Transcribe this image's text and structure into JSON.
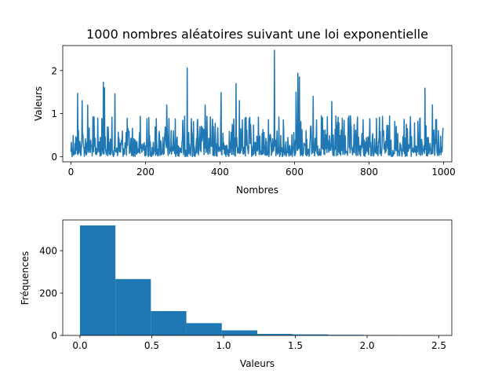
{
  "chart_data": [
    {
      "type": "line",
      "title": "1000 nombres aléatoires suivant une loi exponentielle",
      "xlabel": "Nombres",
      "ylabel": "Valeurs",
      "xlim": [
        -22,
        1022
      ],
      "ylim": [
        -0.12,
        2.58
      ],
      "xticks": [
        0,
        200,
        400,
        600,
        800,
        1000
      ],
      "yticks": [
        0,
        1,
        2
      ],
      "color": "#1f77b4",
      "n_points": 1000,
      "peaks": [
        {
          "x": 18,
          "y": 1.47
        },
        {
          "x": 30,
          "y": 1.3
        },
        {
          "x": 45,
          "y": 1.2
        },
        {
          "x": 87,
          "y": 1.73
        },
        {
          "x": 90,
          "y": 1.6
        },
        {
          "x": 118,
          "y": 1.46
        },
        {
          "x": 257,
          "y": 1.2
        },
        {
          "x": 312,
          "y": 2.06
        },
        {
          "x": 360,
          "y": 1.2
        },
        {
          "x": 403,
          "y": 1.49
        },
        {
          "x": 443,
          "y": 1.7
        },
        {
          "x": 452,
          "y": 1.3
        },
        {
          "x": 546,
          "y": 2.47
        },
        {
          "x": 604,
          "y": 1.5
        },
        {
          "x": 609,
          "y": 1.94
        },
        {
          "x": 613,
          "y": 1.85
        },
        {
          "x": 650,
          "y": 1.4
        },
        {
          "x": 700,
          "y": 1.28
        },
        {
          "x": 950,
          "y": 1.59
        },
        {
          "x": 970,
          "y": 1.2
        }
      ]
    },
    {
      "type": "bar",
      "xlabel": "Valeurs",
      "ylabel": "Fréquences",
      "xlim": [
        -0.12,
        2.59
      ],
      "ylim": [
        0,
        545
      ],
      "xticks": [
        0.0,
        0.5,
        1.0,
        1.5,
        2.0,
        2.5
      ],
      "yticks": [
        0,
        200,
        400
      ],
      "color": "#1f77b4",
      "bin_edges": [
        0.0,
        0.247,
        0.494,
        0.741,
        0.988,
        1.235,
        1.482,
        1.729,
        1.976,
        2.223,
        2.47
      ],
      "counts": [
        519,
        266,
        115,
        58,
        24,
        7,
        5,
        3,
        2,
        1
      ]
    }
  ]
}
